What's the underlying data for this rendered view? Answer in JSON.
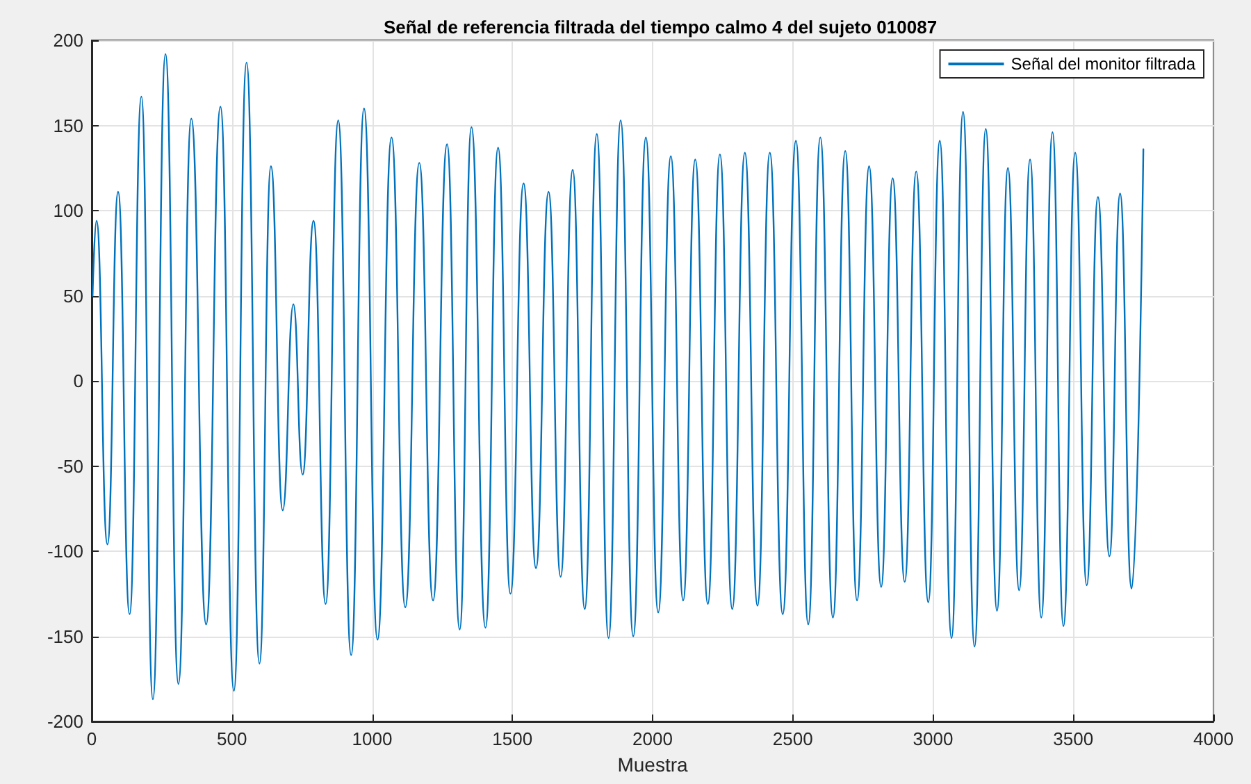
{
  "chart_data": {
    "type": "line",
    "title": "Señal de referencia filtrada del tiempo calmo 4 del sujeto 010087",
    "xlabel": "Muestra",
    "xlim": [
      0,
      4000
    ],
    "xticks": [
      0,
      500,
      1000,
      1500,
      2000,
      2500,
      3000,
      3500,
      4000
    ],
    "ylim": [
      -200,
      200
    ],
    "yticks": [
      -200,
      -150,
      -100,
      -50,
      0,
      50,
      100,
      150,
      200
    ],
    "grid": true,
    "legend": "top right",
    "marker": "none",
    "line_style": "solid",
    "series": [
      {
        "name": "Señal del monitor filtrada",
        "color": "#0072bd",
        "x": [
          3,
          17,
          56,
          94,
          135,
          177,
          218,
          263,
          309,
          355,
          408,
          459,
          507,
          552,
          598,
          639,
          681,
          719,
          752,
          791,
          834,
          879,
          925,
          971,
          1019,
          1069,
          1118,
          1168,
          1217,
          1267,
          1312,
          1354,
          1404,
          1449,
          1493,
          1540,
          1584,
          1629,
          1672,
          1715,
          1758,
          1801,
          1843,
          1886,
          1931,
          1976,
          2020,
          2065,
          2109,
          2152,
          2197,
          2240,
          2284,
          2329,
          2374,
          2418,
          2464,
          2511,
          2555,
          2598,
          2643,
          2687,
          2729,
          2772,
          2815,
          2856,
          2899,
          2940,
          2983,
          3024,
          3066,
          3107,
          3148,
          3188,
          3228,
          3267,
          3307,
          3346,
          3386,
          3426,
          3465,
          3507,
          3548,
          3588,
          3629,
          3667,
          3708,
          3750
        ],
        "values": [
          50,
          94,
          -96,
          111,
          -137,
          167,
          -187,
          192,
          -178,
          154,
          -143,
          161,
          -182,
          187,
          -166,
          126,
          -76,
          45,
          -55,
          94,
          -131,
          153,
          -161,
          160,
          -152,
          143,
          -133,
          128,
          -129,
          139,
          -146,
          149,
          -145,
          137,
          -125,
          116,
          -110,
          111,
          -115,
          124,
          -134,
          145,
          -151,
          153,
          -150,
          143,
          -136,
          132,
          -129,
          130,
          -131,
          133,
          -134,
          134,
          -132,
          134,
          -137,
          141,
          -143,
          143,
          -139,
          135,
          -129,
          126,
          -121,
          119,
          -118,
          123,
          -130,
          141,
          -151,
          158,
          -156,
          148,
          -135,
          125,
          -123,
          130,
          -139,
          146,
          -144,
          134,
          -120,
          108,
          -103,
          110,
          -122,
          136
        ]
      }
    ]
  }
}
